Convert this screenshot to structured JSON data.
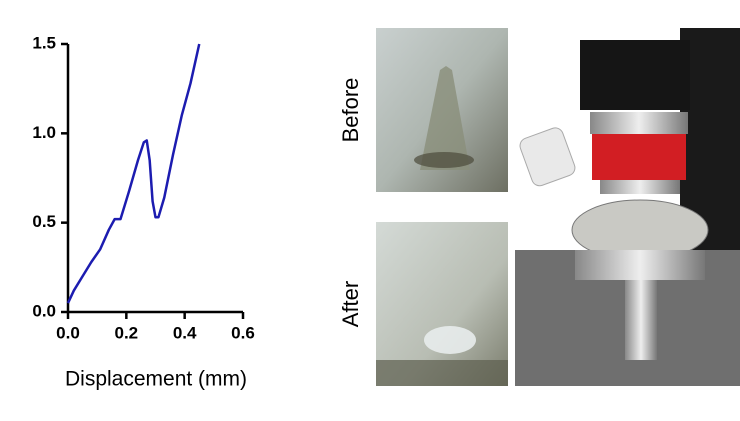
{
  "chart_data": {
    "type": "line",
    "xlabel": "Displacement (mm)",
    "x": [
      0,
      0.02,
      0.05,
      0.08,
      0.11,
      0.14,
      0.16,
      0.18,
      0.21,
      0.24,
      0.26,
      0.27,
      0.28,
      0.29,
      0.3,
      0.31,
      0.33,
      0.36,
      0.39,
      0.42,
      0.45
    ],
    "series": [
      {
        "color": "#1c1cb0",
        "values": [
          0.05,
          0.12,
          0.2,
          0.28,
          0.35,
          0.46,
          0.52,
          0.52,
          0.68,
          0.85,
          0.95,
          0.96,
          0.85,
          0.62,
          0.53,
          0.53,
          0.64,
          0.88,
          1.1,
          1.28,
          1.5
        ]
      }
    ],
    "xlim": [
      0,
      0.6
    ],
    "ylim": [
      0,
      1.5
    ],
    "xticks": [
      {
        "value": 0,
        "label": "0.0"
      },
      {
        "value": 0.2,
        "label": "0.2"
      },
      {
        "value": 0.4,
        "label": "0.4"
      },
      {
        "value": 0.6,
        "label": "0.6"
      }
    ],
    "yticks": [
      {
        "value": 0,
        "label": "0.0"
      },
      {
        "value": 0.5,
        "label": "0.5"
      },
      {
        "value": 1,
        "label": "1.0"
      },
      {
        "value": 1.5,
        "label": "1.5"
      }
    ]
  },
  "photos": {
    "before_label": "Before",
    "after_label": "After"
  }
}
